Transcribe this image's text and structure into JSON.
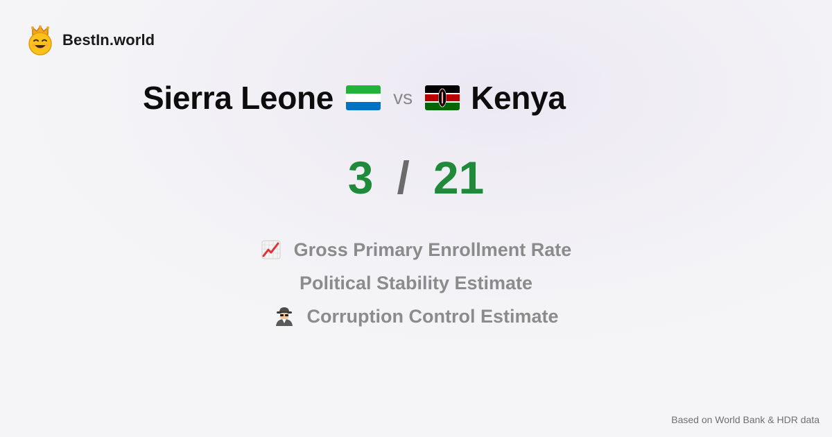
{
  "brand": {
    "name": "BestIn.world",
    "logo_icon": "crown-smiley-icon"
  },
  "comparison": {
    "country_a": {
      "name": "Sierra Leone",
      "flag_icon": "sierra-leone-flag-icon",
      "flag_colors": [
        "#1eb53a",
        "#ffffff",
        "#0072c6"
      ]
    },
    "vs_label": "vs",
    "country_b": {
      "name": "Kenya",
      "flag_icon": "kenya-flag-icon",
      "flag_colors": [
        "#000000",
        "#ffffff",
        "#bb0000",
        "#006600"
      ]
    }
  },
  "score": {
    "a": "3",
    "separator": "/",
    "b": "21",
    "color": "#1f8a3a"
  },
  "metrics": [
    {
      "icon": "chart-increasing-icon",
      "label": "Gross Primary Enrollment Rate"
    },
    {
      "icon": "",
      "label": "Political Stability Estimate"
    },
    {
      "icon": "detective-icon",
      "label": "Corruption Control Estimate"
    }
  ],
  "footer": {
    "source": "Based on World Bank & HDR data"
  }
}
